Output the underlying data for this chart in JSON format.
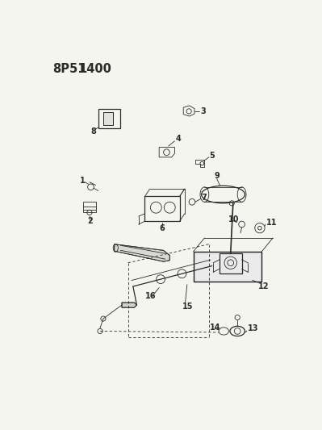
{
  "title_part1": "8P51",
  "title_part2": "1400",
  "bg_color": "#f5f5f0",
  "line_color": "#2a2a2a",
  "fig_width": 3.99,
  "fig_height": 5.33,
  "dpi": 100,
  "label_fontsize": 7.0,
  "title_fontsize": 10.5,
  "lw_thin": 0.6,
  "lw_med": 0.9,
  "lw_thick": 1.2
}
